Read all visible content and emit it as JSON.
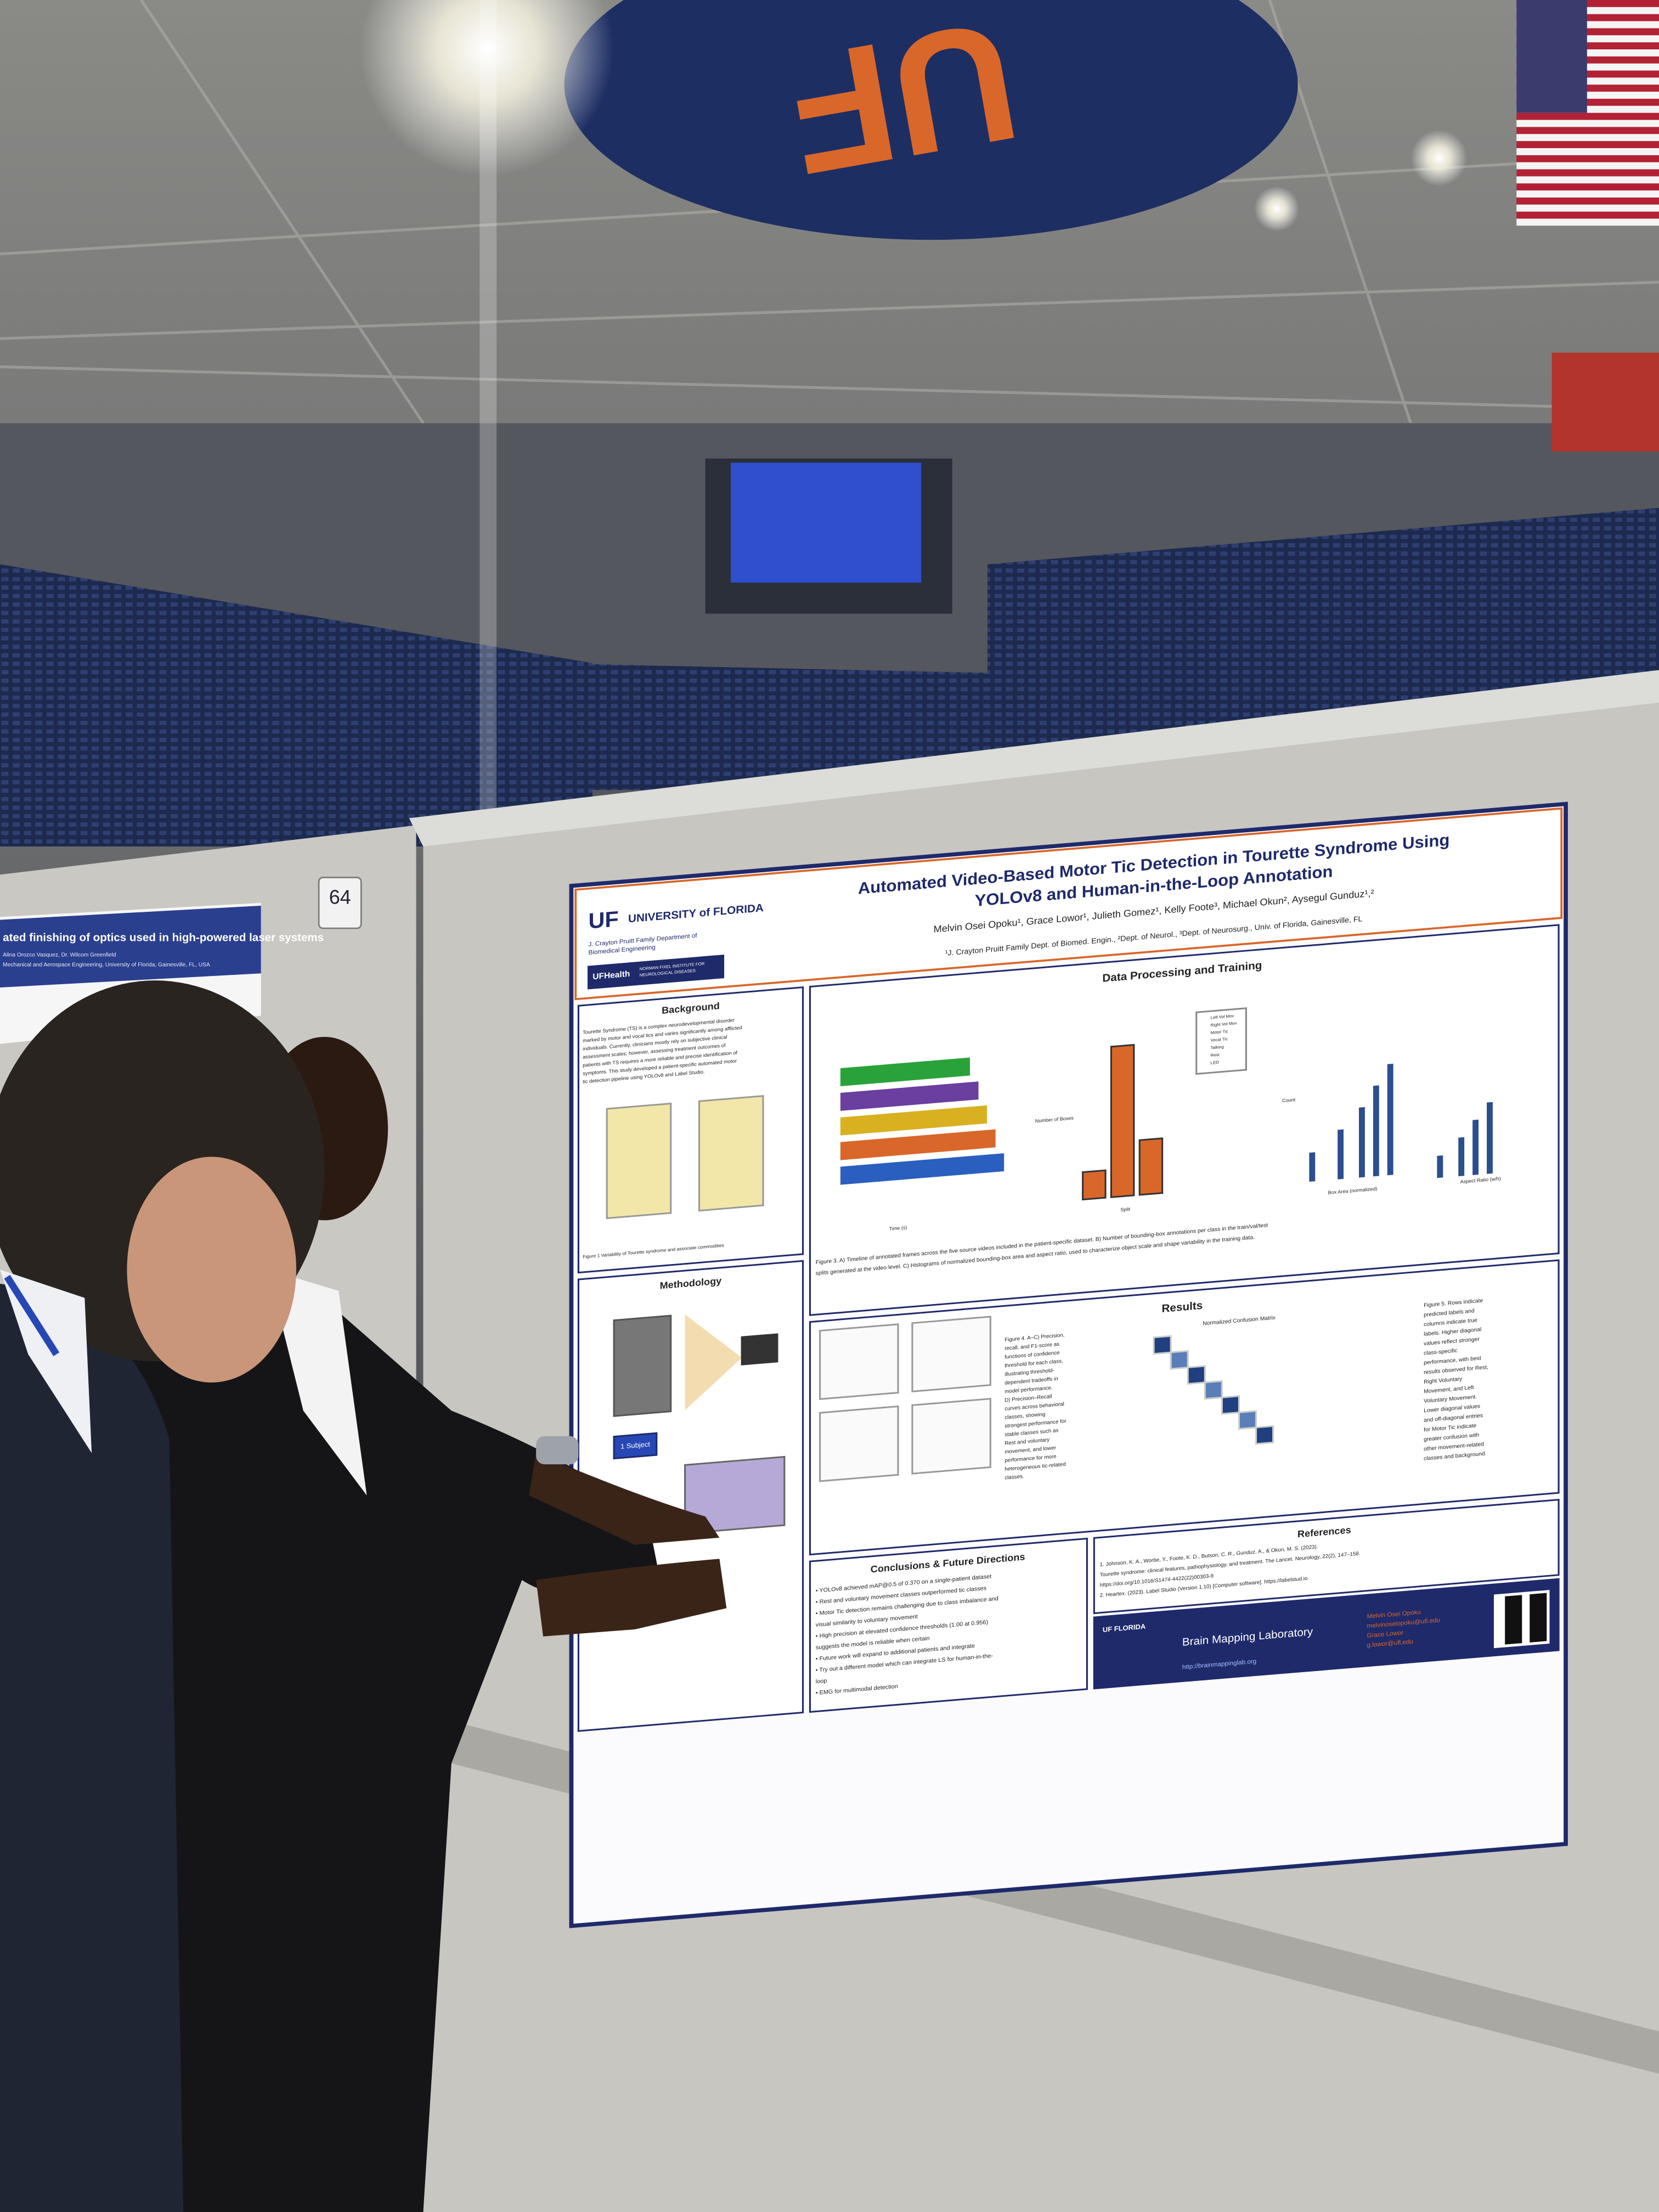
{
  "scene": {
    "booth_number": "64",
    "neighbor_poster": {
      "title": "ated finishing of optics used in high-powered laser systems",
      "authors": "Alina Orozco Vasquez, Dr. Wilcom Greenfield",
      "affiliation": "Mechanical and Aerospace Engineering, University of Florida, Gainesville, FL, USA"
    }
  },
  "poster": {
    "logo": {
      "uf": "UF",
      "university": "UNIVERSITY of FLORIDA",
      "department": [
        "J. Crayton Pruitt Family Department of",
        "Biomedical Engineering"
      ],
      "health": "UFHealth",
      "institute": [
        "NORMAN FIXEL INSTITUTE FOR",
        "NEUROLOGICAL DISEASES"
      ]
    },
    "title": [
      "Automated Video-Based Motor Tic Detection in Tourette Syndrome Using",
      "YOLOv8 and Human-in-the-Loop Annotation"
    ],
    "authors": "Melvin Osei Opoku¹, Grace Lowor¹, Julieth Gomez¹, Kelly Foote³, Michael Okun², Aysegul Gunduz¹,²",
    "affiliations": "¹J. Crayton Pruitt Family Dept. of Biomed. Engin., ²Dept. of Neurol., ³Dept. of Neurosurg., Univ. of Florida, Gainesville, FL",
    "background": {
      "heading": "Background",
      "lines": [
        "Tourette Syndrome (TS) is a complex neurodevelopmental disorder",
        "marked by motor and vocal tics and varies significantly among afflicted",
        "individuals. Currently, clinicians mostly rely on subjective clinical",
        "assessment scales; however, assessing treatment outcomes of",
        "patients with TS requires a more reliable and precise identification of",
        "symptoms. This study developed a patient-specific automated motor",
        "tic detection pipeline using YOLOv8 and Label Studio."
      ],
      "caption": "Figure 1 Variability of Tourette syndrome and associate commodities"
    },
    "methodology": {
      "heading": "Methodology",
      "button": "1 Subject"
    },
    "data_processing": {
      "heading": "Data Processing and Training",
      "legend": [
        "Left Vol Mov",
        "Right Vol Mov",
        "Motor Tic",
        "Vocal Tic",
        "Talking",
        "Rest",
        "LED"
      ],
      "caption": [
        "Figure 3. A) Timeline of annotated frames across the five source videos included in the patient-specific dataset. B) Number of bounding-box annotations per class in the train/val/test",
        "splits generated at the video level. C) Histograms of normalized bounding-box area and aspect ratio, used to characterize object scale and shape variability in the training data."
      ],
      "axis_labels": [
        "Time (s)",
        "Number of Boxes",
        "Split",
        "Count",
        "Box Area (normalized)",
        "Aspect Ratio (w/h)"
      ]
    },
    "results": {
      "heading": "Results",
      "figure4": [
        "Figure 4. A–C) Precision,",
        "recall, and F1-score as",
        "functions of confidence",
        "threshold for each class,",
        "illustrating threshold-",
        "dependent tradeoffs in",
        "model performance.",
        "D) Precision–Recall",
        "curves across behavioral",
        "classes, showing",
        "strongest performance for",
        "stable classes such as",
        "Rest and voluntary",
        "movement, and lower",
        "performance for more",
        "heterogeneous tic-related",
        "classes."
      ],
      "matrix_title": "Normalized Confusion Matrix",
      "figure5": [
        "Figure 5. Rows indicate",
        "predicted labels and",
        "columns indicate true",
        "labels. Higher diagonal",
        "values reflect stronger",
        "class-specific",
        "performance, with best",
        "results observed for Rest,",
        "Right Voluntary",
        "Movement, and Left",
        "Voluntary Movement.",
        "Lower diagonal values",
        "and off-diagonal entries",
        "for Motor Tic indicate",
        "greater confusion with",
        "other movement-related",
        "classes and background."
      ]
    },
    "conclusions": {
      "heading": "Conclusions & Future Directions",
      "lines": [
        "• YOLOv8 achieved mAP@0.5 of 0.370 on a single-patient dataset",
        "• Rest and voluntary movement classes outperformed tic classes",
        "• Motor Tic detection remains challenging due to class imbalance and",
        "  visual similarity to voluntary movement",
        "• High precision at elevated confidence thresholds (1.00 at 0.956)",
        "  suggests the model is reliable when certain",
        "• Future work will expand to additional patients and integrate",
        "• Try out a different model which can integrate LS for human-in-the-",
        "  loop",
        "• EMG for multimodal detection"
      ]
    },
    "references": {
      "heading": "References",
      "lines": [
        "1. Johnson, K. A., Worbe, Y., Foote, K. D., Butson, C. R., Gunduz, A., & Okun, M. S. (2023).",
        "   Tourette syndrome: clinical features, pathophysiology, and treatment. The Lancet. Neurology, 22(2), 147–158.",
        "   https://doi.org/10.1016/S1474-4422(22)00303-9",
        "2. Heartex. (2023). Label Studio (Version 1.10) [Computer software]. https://labelstud.io"
      ]
    },
    "footer": {
      "uf": "UF FLORIDA",
      "lab": "Brain Mapping Laboratory",
      "url": "http://brainmappinglab.org",
      "contacts": [
        "Melvin Osei Opoku",
        "melvinoseiopoku@ufl.edu",
        "Grace Lowor",
        "g.lowor@ufl.edu"
      ]
    }
  }
}
